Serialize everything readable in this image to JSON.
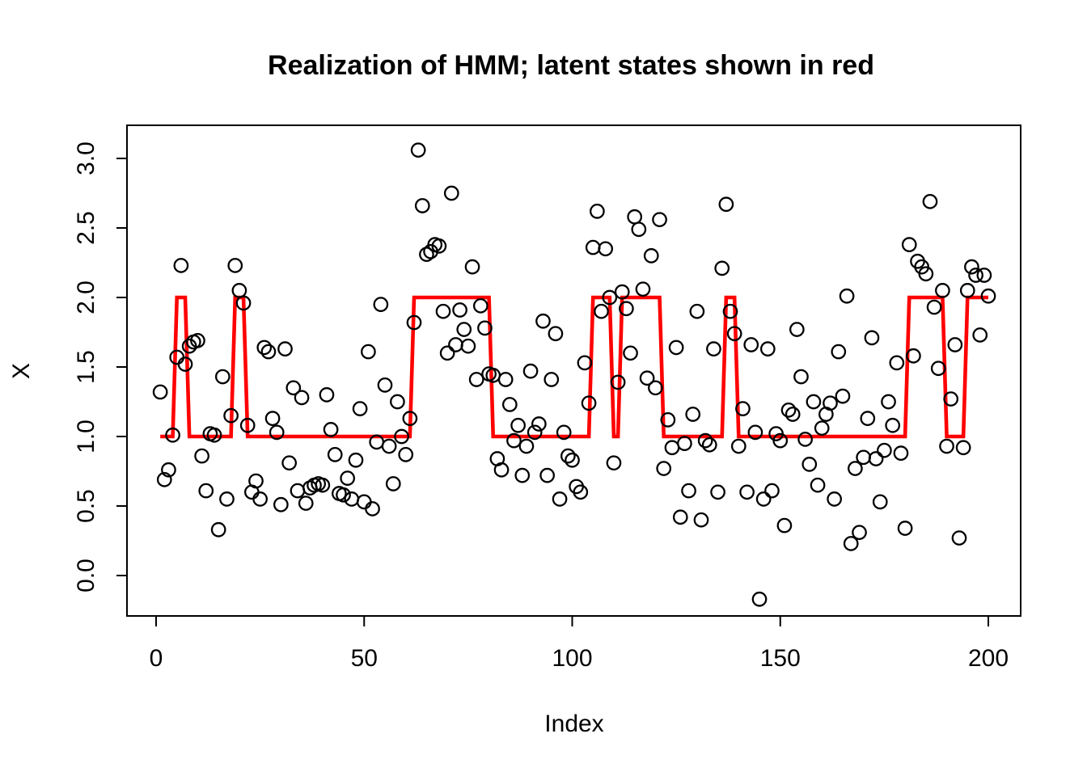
{
  "chart_data": {
    "type": "scatter",
    "title": "Realization of HMM; latent states shown in red",
    "xlabel": "Index",
    "ylabel": "X",
    "xlim": [
      0,
      200
    ],
    "ylim": [
      -0.35,
      3.2
    ],
    "grid": "off",
    "legend": "none",
    "x_ticks": [
      {
        "value": 0,
        "label": "0"
      },
      {
        "value": 50,
        "label": "50"
      },
      {
        "value": 100,
        "label": "100"
      },
      {
        "value": 150,
        "label": "150"
      },
      {
        "value": 200,
        "label": "200"
      }
    ],
    "y_ticks": [
      {
        "value": 0.0,
        "label": "0.0"
      },
      {
        "value": 0.5,
        "label": "0.5"
      },
      {
        "value": 1.0,
        "label": "1.0"
      },
      {
        "value": 1.5,
        "label": "1.5"
      },
      {
        "value": 2.0,
        "label": "2.0"
      },
      {
        "value": 2.5,
        "label": "2.5"
      },
      {
        "value": 3.0,
        "label": "3.0"
      }
    ],
    "colors": {
      "latent_line": "#FF0000",
      "points_stroke": "#000000",
      "frame": "#000000"
    },
    "latent_states_runs": [
      {
        "from": 1,
        "to": 4,
        "state": 1
      },
      {
        "from": 5,
        "to": 7,
        "state": 2
      },
      {
        "from": 8,
        "to": 18,
        "state": 1
      },
      {
        "from": 19,
        "to": 21,
        "state": 2
      },
      {
        "from": 22,
        "to": 61,
        "state": 1
      },
      {
        "from": 62,
        "to": 80,
        "state": 2
      },
      {
        "from": 81,
        "to": 104,
        "state": 1
      },
      {
        "from": 105,
        "to": 109,
        "state": 2
      },
      {
        "from": 110,
        "to": 111,
        "state": 1
      },
      {
        "from": 112,
        "to": 121,
        "state": 2
      },
      {
        "from": 122,
        "to": 136,
        "state": 1
      },
      {
        "from": 137,
        "to": 139,
        "state": 2
      },
      {
        "from": 140,
        "to": 180,
        "state": 1
      },
      {
        "from": 181,
        "to": 189,
        "state": 2
      },
      {
        "from": 190,
        "to": 194,
        "state": 1
      },
      {
        "from": 195,
        "to": 200,
        "state": 2
      }
    ],
    "points": [
      [
        1,
        1.32
      ],
      [
        2,
        0.69
      ],
      [
        3,
        0.76
      ],
      [
        4,
        1.01
      ],
      [
        5,
        1.57
      ],
      [
        6,
        2.23
      ],
      [
        7,
        1.52
      ],
      [
        8,
        1.65
      ],
      [
        9,
        1.68
      ],
      [
        10,
        1.69
      ],
      [
        11,
        0.86
      ],
      [
        12,
        0.61
      ],
      [
        13,
        1.02
      ],
      [
        14,
        1.01
      ],
      [
        15,
        0.33
      ],
      [
        16,
        1.43
      ],
      [
        17,
        0.55
      ],
      [
        18,
        1.15
      ],
      [
        19,
        2.23
      ],
      [
        20,
        2.05
      ],
      [
        21,
        1.96
      ],
      [
        22,
        1.08
      ],
      [
        23,
        0.6
      ],
      [
        24,
        0.68
      ],
      [
        25,
        0.55
      ],
      [
        26,
        1.64
      ],
      [
        27,
        1.61
      ],
      [
        28,
        1.13
      ],
      [
        29,
        1.03
      ],
      [
        30,
        0.51
      ],
      [
        31,
        1.63
      ],
      [
        32,
        0.81
      ],
      [
        33,
        1.35
      ],
      [
        34,
        0.61
      ],
      [
        35,
        1.28
      ],
      [
        36,
        0.52
      ],
      [
        37,
        0.63
      ],
      [
        38,
        0.65
      ],
      [
        39,
        0.66
      ],
      [
        40,
        0.65
      ],
      [
        41,
        1.3
      ],
      [
        42,
        1.05
      ],
      [
        43,
        0.87
      ],
      [
        44,
        0.59
      ],
      [
        45,
        0.58
      ],
      [
        46,
        0.7
      ],
      [
        47,
        0.55
      ],
      [
        48,
        0.83
      ],
      [
        49,
        1.2
      ],
      [
        50,
        0.53
      ],
      [
        51,
        1.61
      ],
      [
        52,
        0.48
      ],
      [
        53,
        0.96
      ],
      [
        54,
        1.95
      ],
      [
        55,
        1.37
      ],
      [
        56,
        0.93
      ],
      [
        57,
        0.66
      ],
      [
        58,
        1.25
      ],
      [
        59,
        1.0
      ],
      [
        60,
        0.87
      ],
      [
        61,
        1.13
      ],
      [
        62,
        1.82
      ],
      [
        63,
        3.06
      ],
      [
        64,
        2.66
      ],
      [
        65,
        2.31
      ],
      [
        66,
        2.33
      ],
      [
        67,
        2.38
      ],
      [
        68,
        2.37
      ],
      [
        69,
        1.9
      ],
      [
        70,
        1.6
      ],
      [
        71,
        2.75
      ],
      [
        72,
        1.66
      ],
      [
        73,
        1.91
      ],
      [
        74,
        1.77
      ],
      [
        75,
        1.65
      ],
      [
        76,
        2.22
      ],
      [
        77,
        1.41
      ],
      [
        78,
        1.94
      ],
      [
        79,
        1.78
      ],
      [
        80,
        1.45
      ],
      [
        81,
        1.44
      ],
      [
        82,
        0.84
      ],
      [
        83,
        0.76
      ],
      [
        84,
        1.41
      ],
      [
        85,
        1.23
      ],
      [
        86,
        0.97
      ],
      [
        87,
        1.08
      ],
      [
        88,
        0.72
      ],
      [
        89,
        0.93
      ],
      [
        90,
        1.47
      ],
      [
        91,
        1.03
      ],
      [
        92,
        1.09
      ],
      [
        93,
        1.83
      ],
      [
        94,
        0.72
      ],
      [
        95,
        1.41
      ],
      [
        96,
        1.74
      ],
      [
        97,
        0.55
      ],
      [
        98,
        1.03
      ],
      [
        99,
        0.86
      ],
      [
        100,
        0.83
      ],
      [
        101,
        0.64
      ],
      [
        102,
        0.6
      ],
      [
        103,
        1.53
      ],
      [
        104,
        1.24
      ],
      [
        105,
        2.36
      ],
      [
        106,
        2.62
      ],
      [
        107,
        1.9
      ],
      [
        108,
        2.35
      ],
      [
        109,
        2.0
      ],
      [
        110,
        0.81
      ],
      [
        111,
        1.39
      ],
      [
        112,
        2.04
      ],
      [
        113,
        1.92
      ],
      [
        114,
        1.6
      ],
      [
        115,
        2.58
      ],
      [
        116,
        2.49
      ],
      [
        117,
        2.06
      ],
      [
        118,
        1.42
      ],
      [
        119,
        2.3
      ],
      [
        120,
        1.35
      ],
      [
        121,
        2.56
      ],
      [
        122,
        0.77
      ],
      [
        123,
        1.12
      ],
      [
        124,
        0.92
      ],
      [
        125,
        1.64
      ],
      [
        126,
        0.42
      ],
      [
        127,
        0.95
      ],
      [
        128,
        0.61
      ],
      [
        129,
        1.16
      ],
      [
        130,
        1.9
      ],
      [
        131,
        0.4
      ],
      [
        132,
        0.97
      ],
      [
        133,
        0.94
      ],
      [
        134,
        1.63
      ],
      [
        135,
        0.6
      ],
      [
        136,
        2.21
      ],
      [
        137,
        2.67
      ],
      [
        138,
        1.9
      ],
      [
        139,
        1.74
      ],
      [
        140,
        0.93
      ],
      [
        141,
        1.2
      ],
      [
        142,
        0.6
      ],
      [
        143,
        1.66
      ],
      [
        144,
        1.03
      ],
      [
        145,
        -0.17
      ],
      [
        146,
        0.55
      ],
      [
        147,
        1.63
      ],
      [
        148,
        0.61
      ],
      [
        149,
        1.02
      ],
      [
        150,
        0.97
      ],
      [
        151,
        0.36
      ],
      [
        152,
        1.19
      ],
      [
        153,
        1.16
      ],
      [
        154,
        1.77
      ],
      [
        155,
        1.43
      ],
      [
        156,
        0.98
      ],
      [
        157,
        0.8
      ],
      [
        158,
        1.25
      ],
      [
        159,
        0.65
      ],
      [
        160,
        1.06
      ],
      [
        161,
        1.16
      ],
      [
        162,
        1.24
      ],
      [
        163,
        0.55
      ],
      [
        164,
        1.61
      ],
      [
        165,
        1.29
      ],
      [
        166,
        2.01
      ],
      [
        167,
        0.23
      ],
      [
        168,
        0.77
      ],
      [
        169,
        0.31
      ],
      [
        170,
        0.85
      ],
      [
        171,
        1.13
      ],
      [
        172,
        1.71
      ],
      [
        173,
        0.84
      ],
      [
        174,
        0.53
      ],
      [
        175,
        0.9
      ],
      [
        176,
        1.25
      ],
      [
        177,
        1.08
      ],
      [
        178,
        1.53
      ],
      [
        179,
        0.88
      ],
      [
        180,
        0.34
      ],
      [
        181,
        2.38
      ],
      [
        182,
        1.58
      ],
      [
        183,
        2.26
      ],
      [
        184,
        2.22
      ],
      [
        185,
        2.17
      ],
      [
        186,
        2.69
      ],
      [
        187,
        1.93
      ],
      [
        188,
        1.49
      ],
      [
        189,
        2.05
      ],
      [
        190,
        0.93
      ],
      [
        191,
        1.27
      ],
      [
        192,
        1.66
      ],
      [
        193,
        0.27
      ],
      [
        194,
        0.92
      ],
      [
        195,
        2.05
      ],
      [
        196,
        2.22
      ],
      [
        197,
        2.16
      ],
      [
        198,
        1.73
      ],
      [
        199,
        2.16
      ],
      [
        200,
        2.01
      ]
    ]
  }
}
